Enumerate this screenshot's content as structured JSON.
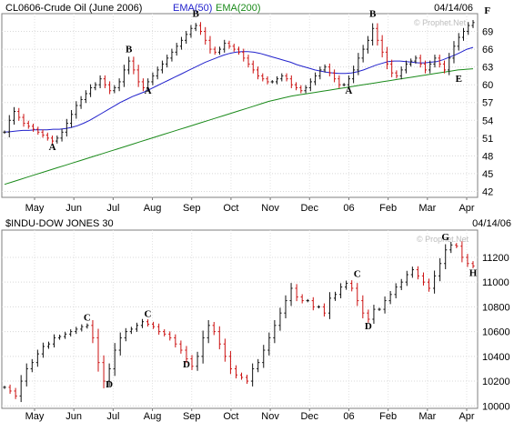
{
  "chart_data": [
    {
      "type": "candlestick",
      "symbol": "CL0606",
      "title": "CL0606-Crude Oil (June 2006)",
      "date": "04/14/06",
      "watermark": "© Prophet.Net",
      "legend": [
        {
          "label": "EMA(50)",
          "color": "#2222cc"
        },
        {
          "label": "EMA(200)",
          "color": "#1a8a1a"
        }
      ],
      "ylim": [
        41,
        72
      ],
      "y_ticks": [
        42,
        45,
        48,
        51,
        54,
        57,
        60,
        63,
        66,
        69
      ],
      "x_months": [
        "May",
        "Jun",
        "Jul",
        "Aug",
        "Sep",
        "Oct",
        "Nov",
        "Dec",
        "06",
        "Feb",
        "Mar",
        "Apr"
      ],
      "price": [
        52,
        54,
        55.5,
        54.5,
        53.5,
        53,
        52.5,
        52,
        51.5,
        51,
        50.5,
        51,
        52,
        53.5,
        55,
        56.5,
        57.5,
        58.5,
        59.5,
        60,
        61,
        60,
        59,
        59.5,
        60.5,
        62.5,
        64,
        62.5,
        60.5,
        59.5,
        60.5,
        61.5,
        62.5,
        63.5,
        64.5,
        65.5,
        66.5,
        67.5,
        68.5,
        69.5,
        70,
        69,
        67.5,
        66,
        65.5,
        66,
        67,
        66.5,
        66,
        65.5,
        64.5,
        63.5,
        62.5,
        61.5,
        61,
        60.5,
        60.5,
        61,
        61.5,
        61,
        60,
        59.5,
        59,
        59.5,
        60.5,
        61.5,
        62.5,
        63,
        62,
        61,
        60,
        60,
        61,
        62.5,
        64.5,
        66,
        67.5,
        69.5,
        67.5,
        65.5,
        63.5,
        62,
        61.5,
        62.5,
        63.5,
        64,
        64.5,
        63.5,
        62.5,
        63.5,
        64.5,
        63.5,
        62.5,
        64.5,
        66.5,
        68,
        69,
        70,
        70.5
      ],
      "ema50": [
        52,
        52.1,
        52.2,
        52.3,
        52.3,
        52.4,
        52.4,
        52.4,
        52.5,
        52.5,
        52.6,
        52.8,
        53.1,
        53.5,
        54,
        54.6,
        55.2,
        55.8,
        56.4,
        57,
        57.5,
        58,
        58.4,
        58.8,
        59.3,
        59.8,
        60.3,
        60.8,
        61.3,
        61.8,
        62.3,
        62.8,
        63.3,
        63.8,
        64.2,
        64.6,
        65,
        65.3,
        65.5,
        65.6,
        65.6,
        65.5,
        65.3,
        65,
        64.7,
        64.4,
        64.1,
        63.8,
        63.4,
        63.1,
        62.8,
        62.5,
        62.3,
        62.1,
        62,
        61.9,
        61.9,
        62,
        62.2,
        62.5,
        62.9,
        63.3,
        63.6,
        63.9,
        64,
        64,
        63.9,
        63.8,
        63.7,
        63.7,
        63.8,
        63.9,
        64.2,
        64.6,
        65,
        65.5,
        66,
        66.3
      ],
      "ema200": [
        43.2,
        43.6,
        44,
        44.4,
        44.8,
        45.2,
        45.6,
        46,
        46.4,
        46.8,
        47.2,
        47.6,
        48,
        48.4,
        48.8,
        49.2,
        49.6,
        50,
        50.4,
        50.8,
        51.2,
        51.6,
        52,
        52.4,
        52.8,
        53.2,
        53.6,
        54,
        54.4,
        54.8,
        55.2,
        55.6,
        56,
        56.4,
        56.8,
        57.2,
        57.5,
        57.8,
        58.1,
        58.3,
        58.5,
        58.7,
        58.9,
        59.1,
        59.3,
        59.5,
        59.7,
        59.9,
        60.1,
        60.3,
        60.5,
        60.7,
        60.9,
        61.1,
        61.3,
        61.5,
        61.7,
        61.9,
        62.1,
        62.3,
        62.5,
        62.6,
        62.7
      ],
      "annotations": [
        {
          "label": "A",
          "date_index": 10,
          "value": 49
        },
        {
          "label": "B",
          "date_index": 26,
          "value": 65.5
        },
        {
          "label": "A",
          "date_index": 30,
          "value": 58.5
        },
        {
          "label": "B",
          "date_index": 40,
          "value": 71.5
        },
        {
          "label": "A",
          "date_index": 72,
          "value": 58.5
        },
        {
          "label": "B",
          "date_index": 77,
          "value": 71.5
        },
        {
          "label": "E",
          "date_index": 95,
          "value": 60.5
        },
        {
          "label": "F",
          "date_index": 101,
          "value": 72
        }
      ]
    },
    {
      "type": "candlestick",
      "symbol": "$INDU",
      "title": "$INDU-DOW JONES 30",
      "date": "04/14/06",
      "watermark": "© Prophet.Net",
      "ylim": [
        9980,
        11420
      ],
      "y_ticks": [
        10000,
        10200,
        10400,
        10600,
        10800,
        11000,
        11200
      ],
      "x_months": [
        "May",
        "Jun",
        "Jul",
        "Aug",
        "Sep",
        "Oct",
        "Nov",
        "Dec",
        "06",
        "Feb",
        "Mar",
        "Apr"
      ],
      "price": [
        10150,
        10120,
        10080,
        10200,
        10300,
        10350,
        10420,
        10480,
        10500,
        10550,
        10560,
        10580,
        10600,
        10620,
        10640,
        10650,
        10550,
        10350,
        10200,
        10300,
        10450,
        10550,
        10600,
        10620,
        10650,
        10680,
        10660,
        10640,
        10600,
        10580,
        10550,
        10500,
        10450,
        10380,
        10320,
        10400,
        10550,
        10650,
        10600,
        10500,
        10400,
        10300,
        10250,
        10230,
        10200,
        10300,
        10350,
        10450,
        10550,
        10650,
        10750,
        10850,
        10950,
        10880,
        10850,
        10850,
        10800,
        10800,
        10750,
        10870,
        10900,
        10960,
        10990,
        10950,
        10850,
        10750,
        10700,
        10780,
        10780,
        10850,
        10900,
        10960,
        11000,
        11060,
        11100,
        11050,
        11000,
        10950,
        11050,
        11150,
        11260,
        11300,
        11290,
        11200,
        11150,
        11130
      ],
      "annotations": [
        {
          "label": "C",
          "date_index": 15,
          "value": 10690
        },
        {
          "label": "D",
          "date_index": 19,
          "value": 10150
        },
        {
          "label": "C",
          "date_index": 26,
          "value": 10720
        },
        {
          "label": "D",
          "date_index": 33,
          "value": 10310
        },
        {
          "label": "C",
          "date_index": 64,
          "value": 11040
        },
        {
          "label": "D",
          "date_index": 66,
          "value": 10620
        },
        {
          "label": "G",
          "date_index": 80,
          "value": 11340
        },
        {
          "label": "H",
          "date_index": 85,
          "value": 11050
        }
      ]
    }
  ]
}
